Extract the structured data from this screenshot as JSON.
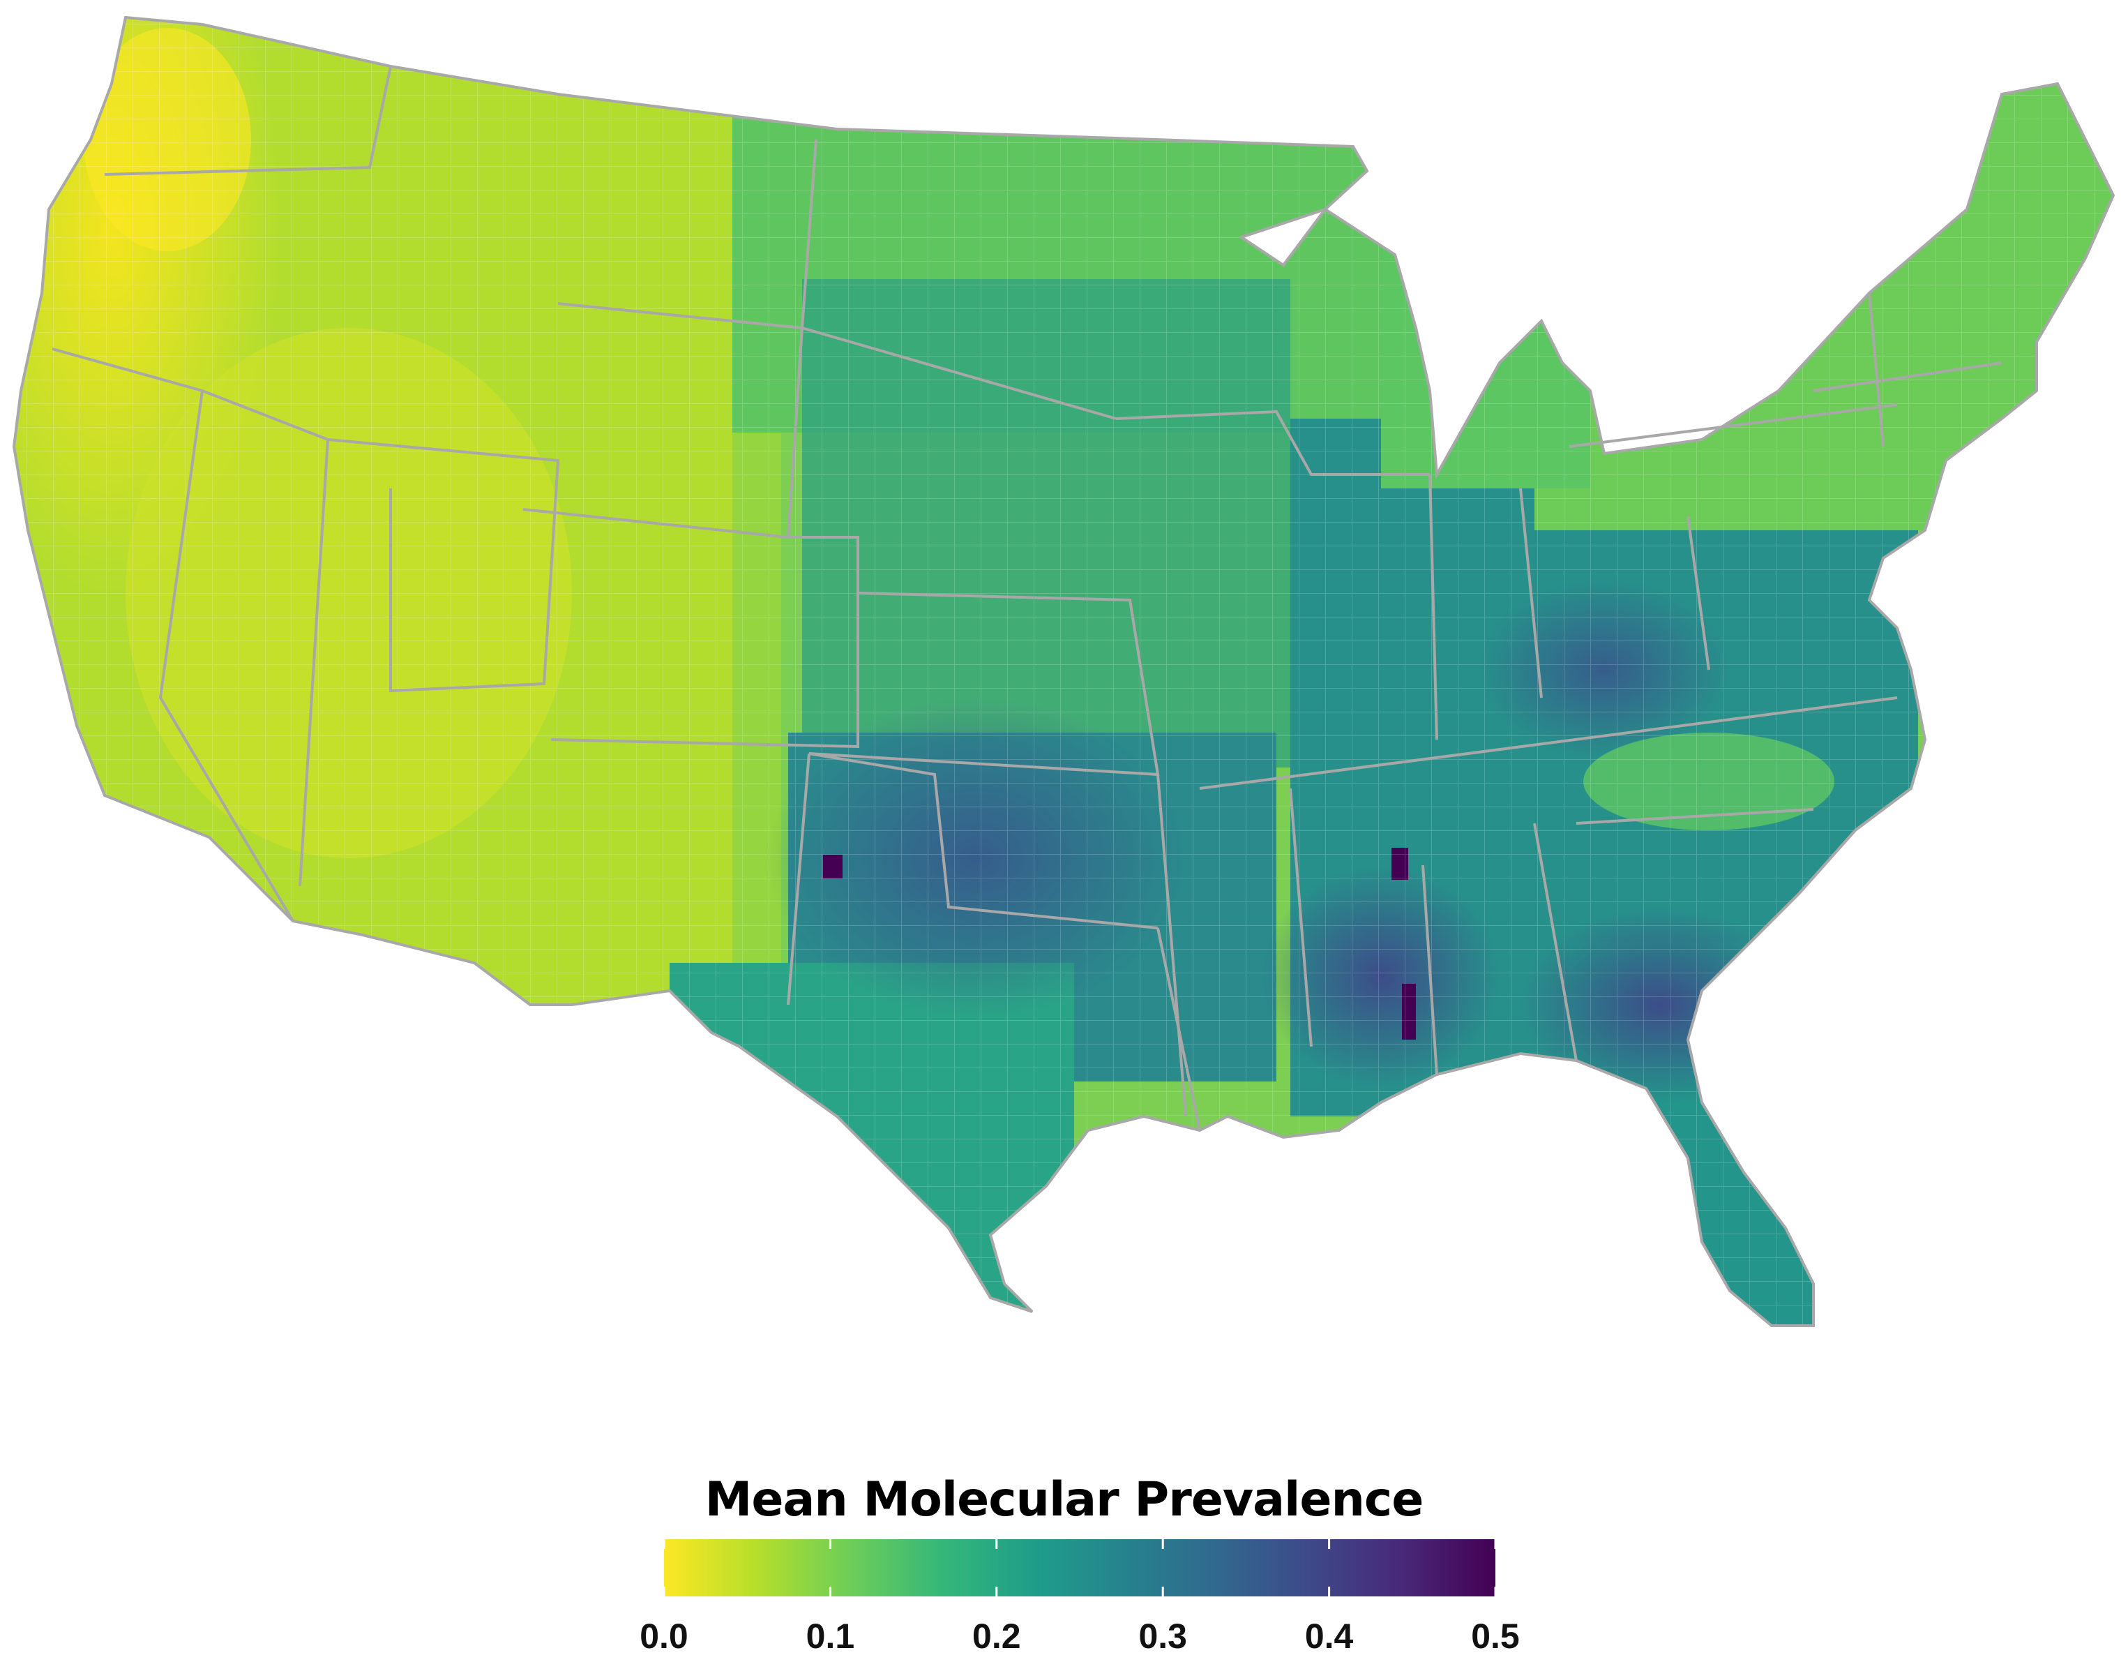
{
  "legend": {
    "title": "Mean Molecular Prevalence",
    "min": 0.0,
    "max": 0.5,
    "ticks": [
      "0.0",
      "0.1",
      "0.2",
      "0.3",
      "0.4",
      "0.5"
    ],
    "tick_values": [
      0.0,
      0.1,
      0.2,
      0.3,
      0.4,
      0.5
    ],
    "colormap": "viridis (reversed)",
    "color_stops": [
      "#fde725",
      "#b5de2b",
      "#6ece58",
      "#35b779",
      "#1f9e89",
      "#26828e",
      "#31688e",
      "#3e4989",
      "#482878",
      "#440154"
    ]
  },
  "map": {
    "region": "Contiguous United States",
    "boundaries": "counties with state outlines",
    "state_border_color": "#a8a8a8",
    "county_border_color": "#d9d9d9",
    "pattern": "Low prevalence in the Pacific Northwest and Great Basin (yellow); moderate across the Great Plains, Midwest and Northeast (green); highest in the southern Plains and Southeast (blue to purple)"
  }
}
